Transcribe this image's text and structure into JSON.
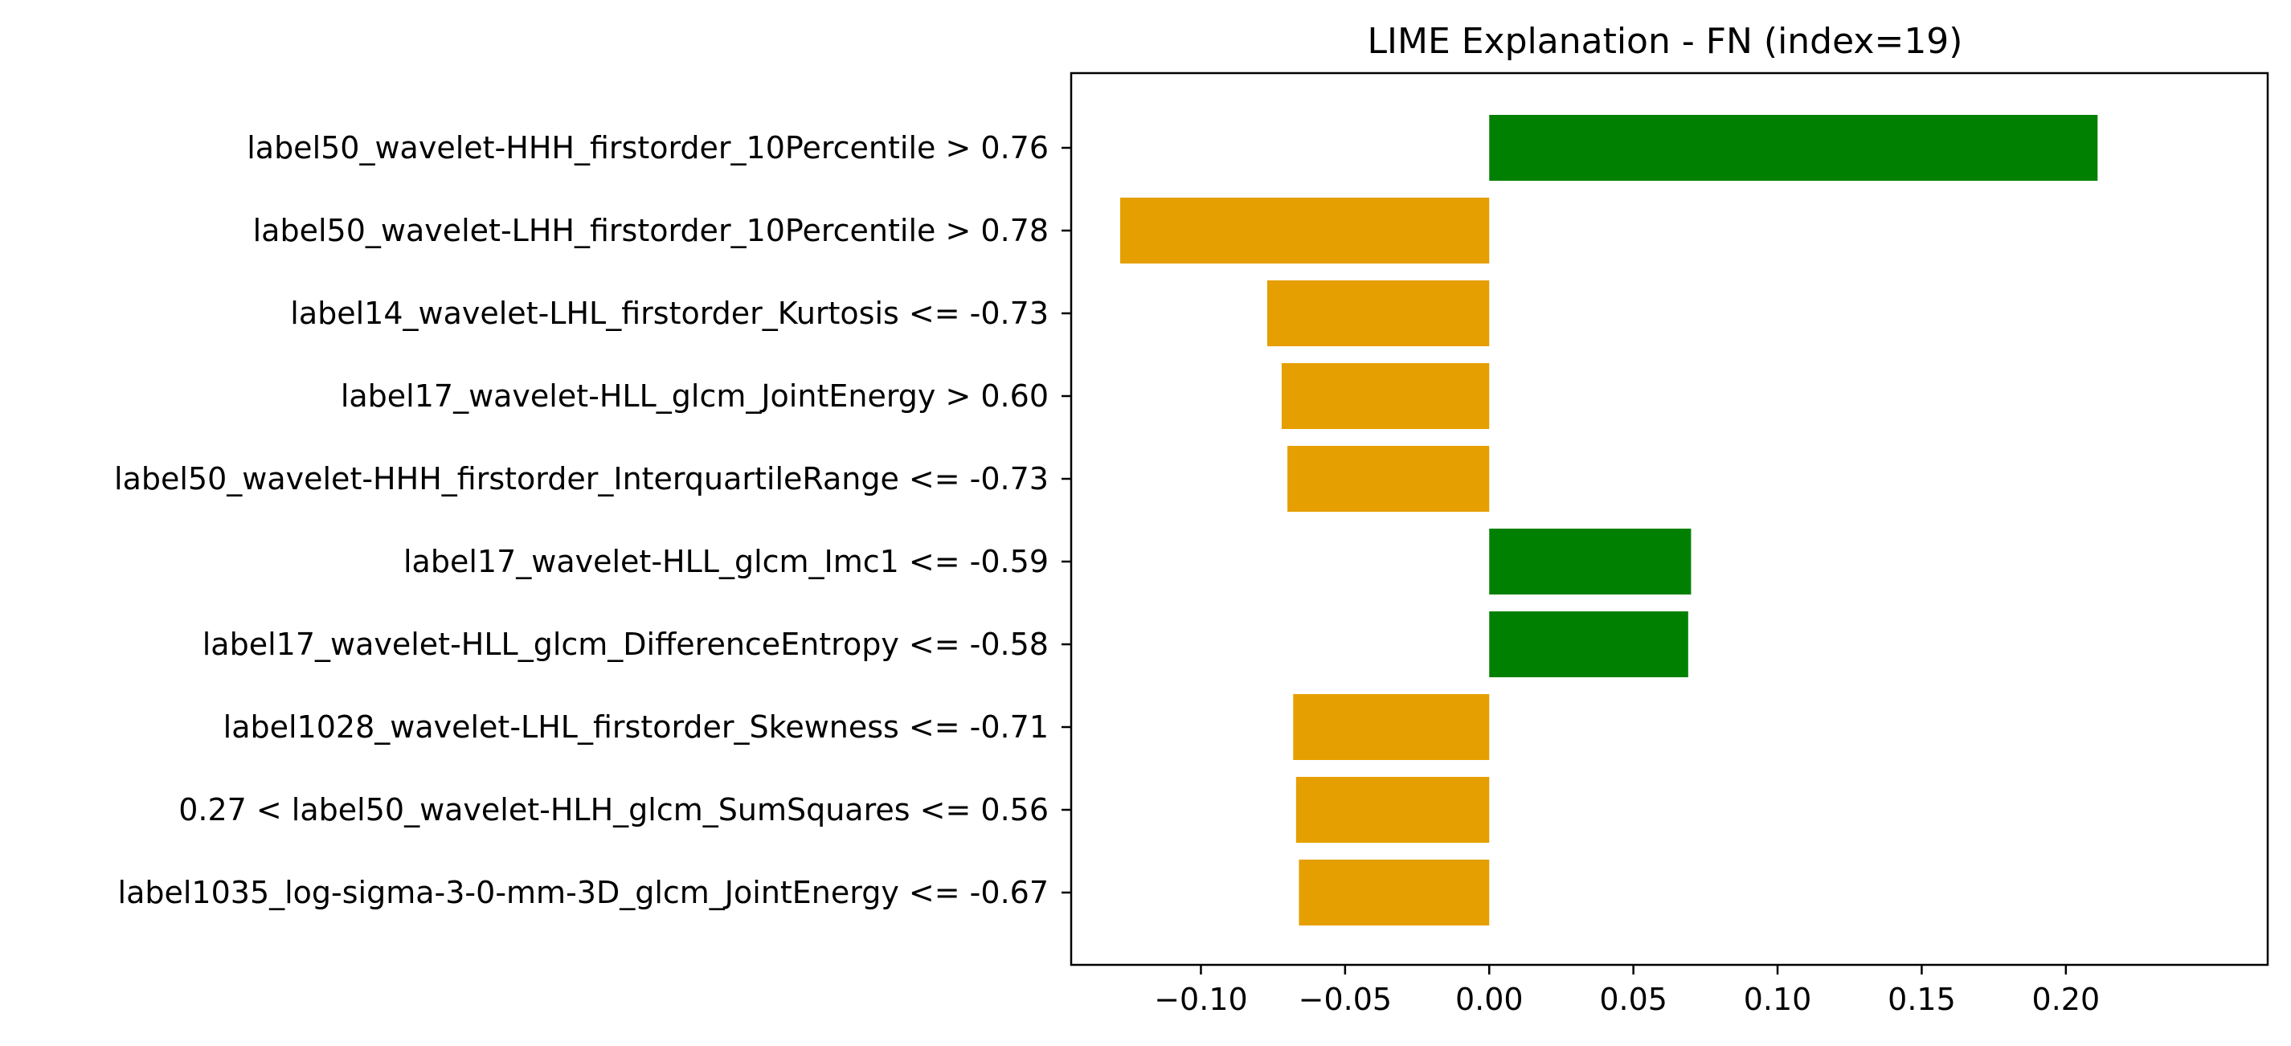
{
  "chart_data": {
    "type": "bar",
    "orientation": "horizontal",
    "title": "LIME Explanation - FN (index=19)",
    "xlabel": "",
    "ylabel": "",
    "xlim": [
      -0.145,
      0.27
    ],
    "xticks": [
      -0.1,
      -0.05,
      0.0,
      0.05,
      0.1,
      0.15,
      0.2
    ],
    "xtick_labels": [
      "−0.10",
      "−0.05",
      "0.00",
      "0.05",
      "0.10",
      "0.15",
      "0.20"
    ],
    "grid": false,
    "legend": "none",
    "positive_color": "#008000",
    "negative_color": "#E69F00",
    "categories": [
      "label50_wavelet-HHH_firstorder_10Percentile > 0.76",
      "label50_wavelet-LHH_firstorder_10Percentile > 0.78",
      "label14_wavelet-LHL_firstorder_Kurtosis <= -0.73",
      "label17_wavelet-HLL_glcm_JointEnergy > 0.60",
      "label50_wavelet-HHH_firstorder_InterquartileRange <= -0.73",
      "label17_wavelet-HLL_glcm_Imc1 <= -0.59",
      "label17_wavelet-HLL_glcm_DifferenceEntropy <= -0.58",
      "label1028_wavelet-LHL_firstorder_Skewness <= -0.71",
      "0.27 < label50_wavelet-HLH_glcm_SumSquares <= 0.56",
      "label1035_log-sigma-3-0-mm-3D_glcm_JointEnergy <= -0.67"
    ],
    "values": [
      0.211,
      -0.128,
      -0.077,
      -0.072,
      -0.07,
      0.07,
      0.069,
      -0.068,
      -0.067,
      -0.066
    ]
  }
}
